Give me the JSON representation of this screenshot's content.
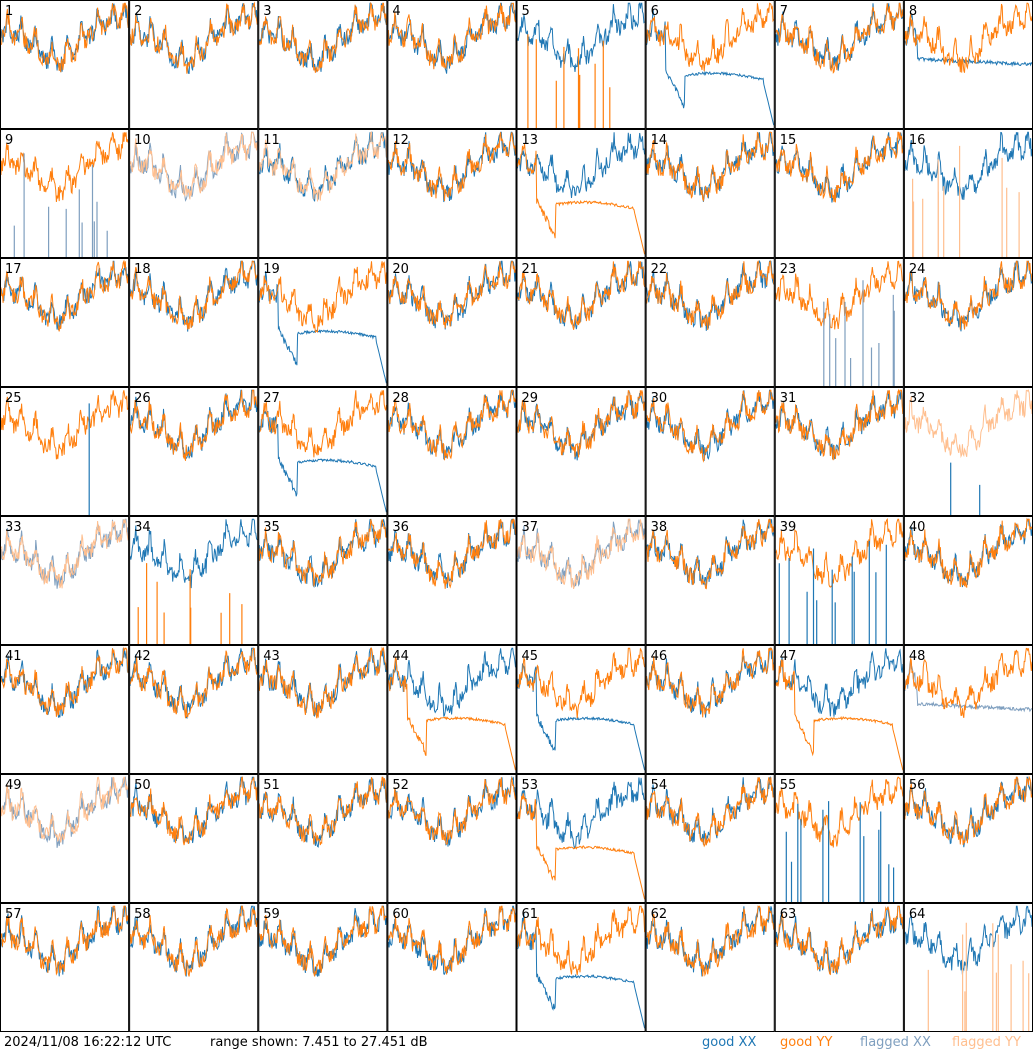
{
  "chart_data": {
    "type": "line",
    "panels": [
      "1",
      "2",
      "3",
      "4",
      "5",
      "6",
      "7",
      "8",
      "9",
      "10",
      "11",
      "12",
      "13",
      "14",
      "15",
      "16",
      "17",
      "18",
      "19",
      "20",
      "21",
      "22",
      "23",
      "24",
      "25",
      "26",
      "27",
      "28",
      "29",
      "30",
      "31",
      "32",
      "33",
      "34",
      "35",
      "36",
      "37",
      "38",
      "39",
      "40",
      "41",
      "42",
      "43",
      "44",
      "45",
      "46",
      "47",
      "48",
      "49",
      "50",
      "51",
      "52",
      "53",
      "54",
      "55",
      "56",
      "57",
      "58",
      "59",
      "60",
      "61",
      "62",
      "63",
      "64"
    ],
    "panel_types": {
      "5": "xx-good-yy-spikes",
      "6": "xx-droop",
      "8": "xx-flat",
      "9": "yy-good-xx-flagged-spikes",
      "10": "flagged-both",
      "11": "flagged-yy-good-xx",
      "13": "yy-droop",
      "16": "xx-good-yy-flagged-spikes",
      "19": "xx-droop",
      "23": "yy-good-xx-flagged-spikes",
      "25": "yy-good-xx-spike",
      "27": "xx-droop",
      "32": "flagged-yy-only",
      "33": "flagged-both",
      "34": "xx-good-yy-spikes",
      "37": "flagged-both",
      "39": "yy-good-xx-spikes",
      "44": "yy-droop",
      "45": "xx-droop",
      "47": "yy-droop",
      "48": "flagged-xx-good-yy",
      "49": "flagged-both",
      "53": "yy-droop",
      "55": "yy-good-xx-spikes",
      "61": "xx-droop",
      "64": "xx-good-yy-flagged-spikes"
    },
    "range_db": [
      7.451,
      27.451
    ],
    "colors": {
      "good_xx": "#1f77b4",
      "good_yy": "#ff7f0e",
      "flagged_xx": "#7f9fbf",
      "flagged_yy": "#ffbf8f"
    }
  },
  "footer": {
    "timestamp": "2024/11/08 16:22:12 UTC",
    "range_text": "range shown: 7.451 to 27.451 dB"
  },
  "legend": {
    "good_xx": "good XX",
    "good_yy": "good YY",
    "flagged_xx": "flagged XX",
    "flagged_yy": "flagged YY"
  }
}
